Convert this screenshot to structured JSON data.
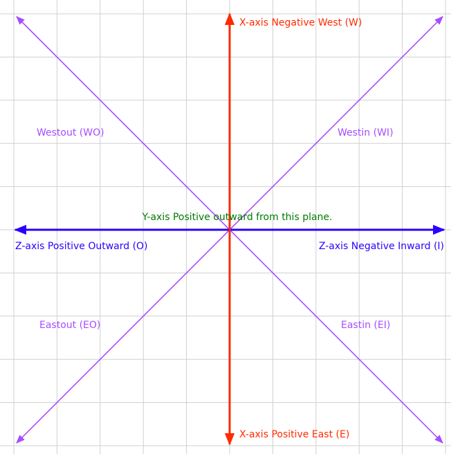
{
  "labels": {
    "x_negative": "X-axis Negative West (W)",
    "x_positive": "X-axis Positive East (E)",
    "z_positive": "Z-axis Positive Outward (O)",
    "z_negative": "Z-axis Negative Inward (I)",
    "y_positive": "Y-axis Positive outward from this plane.",
    "westout": "Westout (WO)",
    "westin": "Westin (WI)",
    "eastout": "Eastout (EO)",
    "eastin": "Eastin (EI)"
  }
}
